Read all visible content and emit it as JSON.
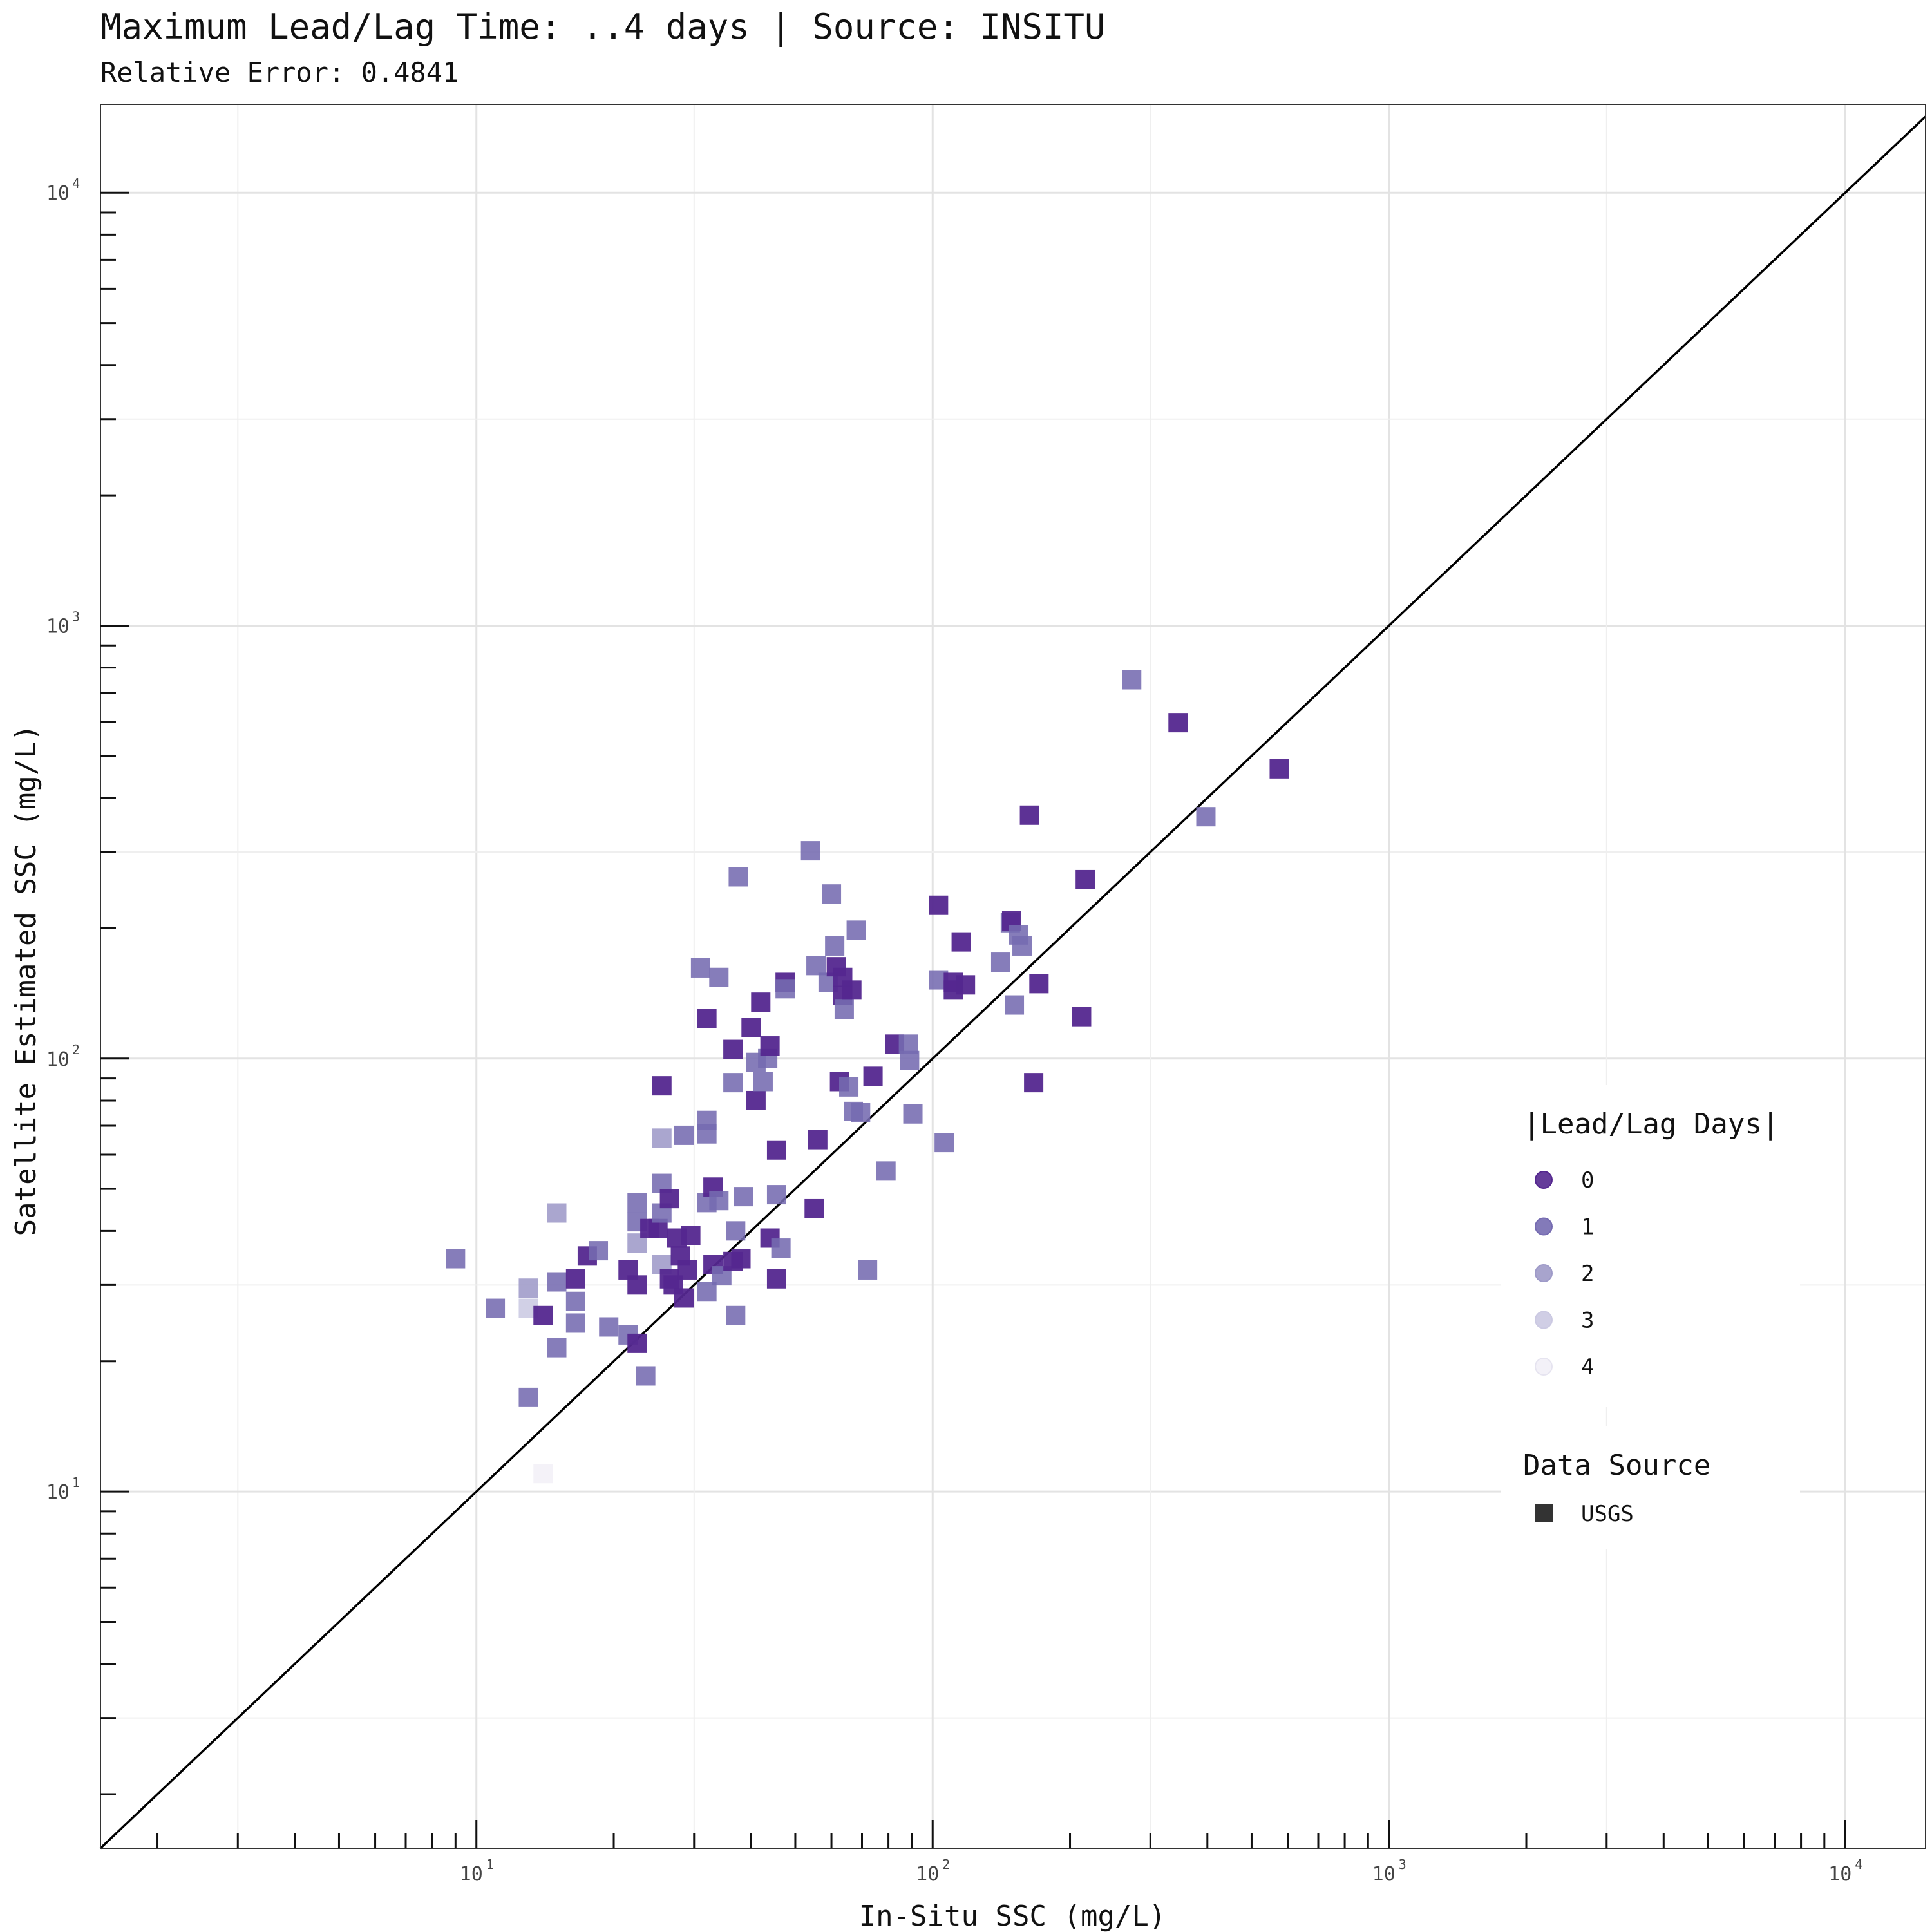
{
  "chart_data": {
    "type": "scatter",
    "title": "Maximum Lead/Lag Time: ..4 days | Source: INSITU",
    "subtitle": "Relative Error: 0.4841",
    "xlabel": "In-Situ SSC (mg/L)",
    "ylabel": "Satellite Estimated SSC (mg/L)",
    "xscale": "log",
    "yscale": "log",
    "xlim": [
      1.5,
      15000
    ],
    "ylim": [
      1.5,
      16000
    ],
    "x_ticks": [
      {
        "base": "10",
        "exp": "1",
        "value": 10
      },
      {
        "base": "10",
        "exp": "2",
        "value": 100
      },
      {
        "base": "10",
        "exp": "3",
        "value": 1000
      },
      {
        "base": "10",
        "exp": "4",
        "value": 10000
      }
    ],
    "y_ticks": [
      {
        "base": "10",
        "exp": "1",
        "value": 10
      },
      {
        "base": "10",
        "exp": "2",
        "value": 100
      },
      {
        "base": "10",
        "exp": "3",
        "value": 1000
      },
      {
        "base": "10",
        "exp": "4",
        "value": 10000
      }
    ],
    "grid": true,
    "reference_line": "1:1",
    "legend_position": "right",
    "legend": {
      "color_title": "|Lead/Lag Days|",
      "color_entries": [
        {
          "label": "0",
          "color": "#54278f"
        },
        {
          "label": "1",
          "color": "#756bb1"
        },
        {
          "label": "2",
          "color": "#9e9ac8"
        },
        {
          "label": "3",
          "color": "#cbc9e2"
        },
        {
          "label": "4",
          "color": "#f2f0f7"
        }
      ],
      "shape_title": "Data Source",
      "shape_entries": [
        {
          "label": "USGS",
          "color": "#333333",
          "shape": "square"
        }
      ]
    },
    "series": [
      {
        "name": "USGS",
        "marker": "square",
        "points": [
          {
            "x": 9.0,
            "y": 34.5,
            "d": 1
          },
          {
            "x": 11.0,
            "y": 26.5,
            "d": 1
          },
          {
            "x": 13.0,
            "y": 29.5,
            "d": 2
          },
          {
            "x": 13.0,
            "y": 26.5,
            "d": 3
          },
          {
            "x": 13.0,
            "y": 16.5,
            "d": 1
          },
          {
            "x": 14.0,
            "y": 25.5,
            "d": 0
          },
          {
            "x": 14.0,
            "y": 11.0,
            "d": 4
          },
          {
            "x": 15.0,
            "y": 44.0,
            "d": 2
          },
          {
            "x": 15.0,
            "y": 30.5,
            "d": 1
          },
          {
            "x": 15.0,
            "y": 21.5,
            "d": 1
          },
          {
            "x": 16.5,
            "y": 31.0,
            "d": 0
          },
          {
            "x": 16.5,
            "y": 27.5,
            "d": 1
          },
          {
            "x": 16.5,
            "y": 24.5,
            "d": 1
          },
          {
            "x": 17.5,
            "y": 35.0,
            "d": 0
          },
          {
            "x": 18.5,
            "y": 36.0,
            "d": 1
          },
          {
            "x": 19.5,
            "y": 24.0,
            "d": 1
          },
          {
            "x": 21.5,
            "y": 32.5,
            "d": 0
          },
          {
            "x": 21.5,
            "y": 23.0,
            "d": 1
          },
          {
            "x": 22.5,
            "y": 46.5,
            "d": 1
          },
          {
            "x": 22.5,
            "y": 42.0,
            "d": 1
          },
          {
            "x": 22.5,
            "y": 37.5,
            "d": 2
          },
          {
            "x": 22.5,
            "y": 30.0,
            "d": 0
          },
          {
            "x": 22.5,
            "y": 22.0,
            "d": 0
          },
          {
            "x": 23.5,
            "y": 18.5,
            "d": 1
          },
          {
            "x": 24.0,
            "y": 40.5,
            "d": 0
          },
          {
            "x": 25.0,
            "y": 40.5,
            "d": 0
          },
          {
            "x": 25.5,
            "y": 33.5,
            "d": 2
          },
          {
            "x": 25.5,
            "y": 44.0,
            "d": 1
          },
          {
            "x": 25.5,
            "y": 51.5,
            "d": 1
          },
          {
            "x": 25.5,
            "y": 65.5,
            "d": 2
          },
          {
            "x": 25.5,
            "y": 86.5,
            "d": 0
          },
          {
            "x": 26.5,
            "y": 47.5,
            "d": 0
          },
          {
            "x": 26.5,
            "y": 31.0,
            "d": 0
          },
          {
            "x": 27.0,
            "y": 30.0,
            "d": 0
          },
          {
            "x": 27.5,
            "y": 38.5,
            "d": 0
          },
          {
            "x": 28.0,
            "y": 35.0,
            "d": 0
          },
          {
            "x": 28.5,
            "y": 66.5,
            "d": 1
          },
          {
            "x": 28.5,
            "y": 28.0,
            "d": 0
          },
          {
            "x": 29.0,
            "y": 32.5,
            "d": 0
          },
          {
            "x": 29.5,
            "y": 39.0,
            "d": 0
          },
          {
            "x": 31.0,
            "y": 162.0,
            "d": 1
          },
          {
            "x": 32.0,
            "y": 124.0,
            "d": 0
          },
          {
            "x": 32.0,
            "y": 72.0,
            "d": 1
          },
          {
            "x": 32.0,
            "y": 67.0,
            "d": 1
          },
          {
            "x": 32.0,
            "y": 46.5,
            "d": 1
          },
          {
            "x": 32.0,
            "y": 29.0,
            "d": 1
          },
          {
            "x": 33.0,
            "y": 50.5,
            "d": 0
          },
          {
            "x": 33.0,
            "y": 33.5,
            "d": 0
          },
          {
            "x": 34.0,
            "y": 154.0,
            "d": 1
          },
          {
            "x": 34.0,
            "y": 47.0,
            "d": 1
          },
          {
            "x": 34.5,
            "y": 31.5,
            "d": 1
          },
          {
            "x": 36.5,
            "y": 105.0,
            "d": 0
          },
          {
            "x": 36.5,
            "y": 88.0,
            "d": 1
          },
          {
            "x": 36.5,
            "y": 34.0,
            "d": 0
          },
          {
            "x": 37.0,
            "y": 40.0,
            "d": 1
          },
          {
            "x": 37.0,
            "y": 25.5,
            "d": 1
          },
          {
            "x": 37.5,
            "y": 263.0,
            "d": 1
          },
          {
            "x": 38.0,
            "y": 34.5,
            "d": 0
          },
          {
            "x": 38.5,
            "y": 48.0,
            "d": 1
          },
          {
            "x": 40.0,
            "y": 118.0,
            "d": 0
          },
          {
            "x": 41.0,
            "y": 80.0,
            "d": 0
          },
          {
            "x": 41.0,
            "y": 98.0,
            "d": 1
          },
          {
            "x": 42.0,
            "y": 135.0,
            "d": 0
          },
          {
            "x": 42.5,
            "y": 88.5,
            "d": 1
          },
          {
            "x": 43.5,
            "y": 100.0,
            "d": 1
          },
          {
            "x": 44.0,
            "y": 107.0,
            "d": 0
          },
          {
            "x": 44.0,
            "y": 38.5,
            "d": 0
          },
          {
            "x": 45.5,
            "y": 61.5,
            "d": 0
          },
          {
            "x": 45.5,
            "y": 48.5,
            "d": 1
          },
          {
            "x": 45.5,
            "y": 31.0,
            "d": 0
          },
          {
            "x": 46.5,
            "y": 36.5,
            "d": 1
          },
          {
            "x": 47.5,
            "y": 150.0,
            "d": 0
          },
          {
            "x": 47.5,
            "y": 145.0,
            "d": 1
          },
          {
            "x": 54.0,
            "y": 302.0,
            "d": 1
          },
          {
            "x": 55.0,
            "y": 45.0,
            "d": 0
          },
          {
            "x": 55.5,
            "y": 164.0,
            "d": 1
          },
          {
            "x": 56.0,
            "y": 65.0,
            "d": 0
          },
          {
            "x": 59.0,
            "y": 150.0,
            "d": 1
          },
          {
            "x": 60.0,
            "y": 240.0,
            "d": 1
          },
          {
            "x": 61.0,
            "y": 182.0,
            "d": 1
          },
          {
            "x": 61.5,
            "y": 163.0,
            "d": 0
          },
          {
            "x": 62.5,
            "y": 88.5,
            "d": 0
          },
          {
            "x": 63.5,
            "y": 154.0,
            "d": 0
          },
          {
            "x": 63.5,
            "y": 140.0,
            "d": 0
          },
          {
            "x": 64.0,
            "y": 130.0,
            "d": 1
          },
          {
            "x": 65.5,
            "y": 86.0,
            "d": 1
          },
          {
            "x": 66.5,
            "y": 144.0,
            "d": 0
          },
          {
            "x": 67.0,
            "y": 75.5,
            "d": 1
          },
          {
            "x": 68.0,
            "y": 198.0,
            "d": 1
          },
          {
            "x": 69.5,
            "y": 75.0,
            "d": 1
          },
          {
            "x": 72.0,
            "y": 32.5,
            "d": 1
          },
          {
            "x": 74.0,
            "y": 91.0,
            "d": 0
          },
          {
            "x": 79.0,
            "y": 55.0,
            "d": 1
          },
          {
            "x": 82.5,
            "y": 108.0,
            "d": 0
          },
          {
            "x": 88.5,
            "y": 108.0,
            "d": 1
          },
          {
            "x": 89.0,
            "y": 99.0,
            "d": 1
          },
          {
            "x": 90.5,
            "y": 74.5,
            "d": 1
          },
          {
            "x": 103.0,
            "y": 226.0,
            "d": 0
          },
          {
            "x": 103.0,
            "y": 152.0,
            "d": 1
          },
          {
            "x": 106.0,
            "y": 64.0,
            "d": 1
          },
          {
            "x": 111.0,
            "y": 150.0,
            "d": 0
          },
          {
            "x": 111.0,
            "y": 144.0,
            "d": 0
          },
          {
            "x": 115.5,
            "y": 186.0,
            "d": 0
          },
          {
            "x": 118.0,
            "y": 148.0,
            "d": 0
          },
          {
            "x": 141.0,
            "y": 167.0,
            "d": 1
          },
          {
            "x": 148.0,
            "y": 206.0,
            "d": 1
          },
          {
            "x": 149.0,
            "y": 208.0,
            "d": 0
          },
          {
            "x": 151.0,
            "y": 133.0,
            "d": 1
          },
          {
            "x": 154.0,
            "y": 193.0,
            "d": 1
          },
          {
            "x": 157.0,
            "y": 182.0,
            "d": 1
          },
          {
            "x": 163.0,
            "y": 365.0,
            "d": 0
          },
          {
            "x": 166.5,
            "y": 88.0,
            "d": 0
          },
          {
            "x": 171.0,
            "y": 149.0,
            "d": 0
          },
          {
            "x": 212.0,
            "y": 125.0,
            "d": 0
          },
          {
            "x": 216.0,
            "y": 259.0,
            "d": 0
          },
          {
            "x": 273.0,
            "y": 750.0,
            "d": 1
          },
          {
            "x": 345.0,
            "y": 597.0,
            "d": 0
          },
          {
            "x": 397.0,
            "y": 362.0,
            "d": 1
          },
          {
            "x": 575.0,
            "y": 467.0,
            "d": 0
          }
        ]
      }
    ]
  }
}
